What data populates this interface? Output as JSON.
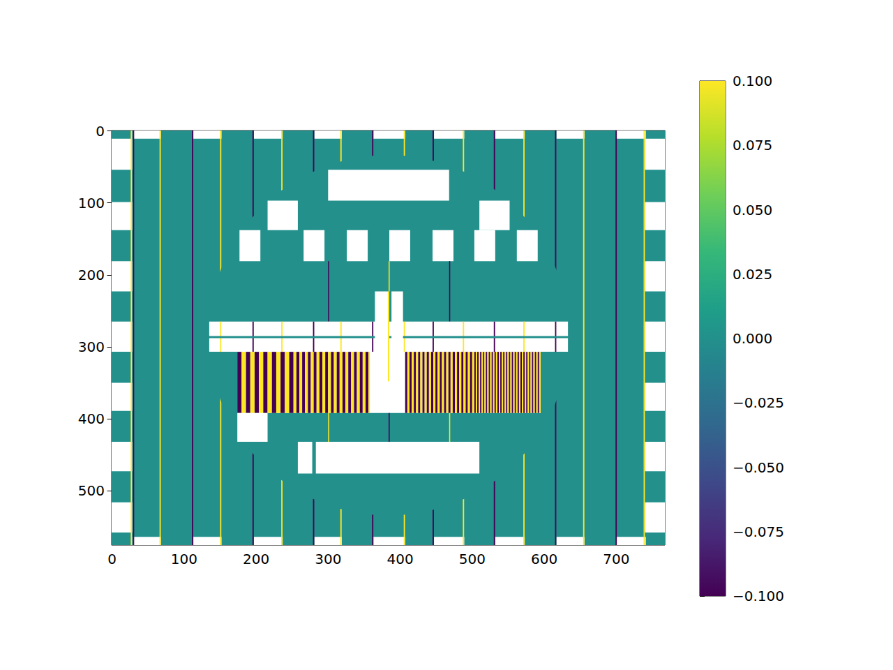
{
  "chart_data": {
    "type": "heatmap",
    "xlim": [
      -0.5,
      767.5
    ],
    "xticks": [
      0,
      100,
      200,
      300,
      400,
      500,
      600,
      700
    ],
    "ylim": [
      575.5,
      -0.5
    ],
    "yticks": [
      0,
      100,
      200,
      300,
      400,
      500
    ],
    "colorbar": {
      "range": [
        -0.1,
        0.1
      ],
      "ticks": [
        {
          "value": -0.1,
          "label": "−0.100"
        },
        {
          "value": -0.075,
          "label": "−0.075"
        },
        {
          "value": -0.05,
          "label": "−0.050"
        },
        {
          "value": -0.025,
          "label": "−0.025"
        },
        {
          "value": 0,
          "label": "0.000"
        },
        {
          "value": 0.025,
          "label": "0.025"
        },
        {
          "value": 0.05,
          "label": "0.050"
        },
        {
          "value": 0.075,
          "label": "0.075"
        },
        {
          "value": 0.1,
          "label": "0.100"
        }
      ]
    },
    "cells": [
      [
        -0.5,
        767.5,
        -0.5,
        575.5,
        0
      ],
      [
        -0.5,
        28,
        11,
        54,
        null
      ],
      [
        -0.5,
        28,
        99,
        138,
        null
      ],
      [
        -0.5,
        28,
        181,
        223,
        null
      ],
      [
        -0.5,
        28,
        265,
        307,
        null
      ],
      [
        -0.5,
        28,
        350,
        389,
        null
      ],
      [
        -0.5,
        28,
        432,
        473,
        null
      ],
      [
        -0.5,
        28,
        516,
        558,
        null
      ],
      [
        740,
        767.5,
        11,
        54,
        null
      ],
      [
        740,
        767.5,
        99,
        138,
        null
      ],
      [
        740,
        767.5,
        181,
        223,
        null
      ],
      [
        740,
        767.5,
        265,
        307,
        null
      ],
      [
        740,
        767.5,
        350,
        389,
        null
      ],
      [
        740,
        767.5,
        432,
        473,
        null
      ],
      [
        740,
        767.5,
        516,
        558,
        null
      ],
      [
        29,
        68,
        -0.5,
        11,
        null
      ],
      [
        113,
        152,
        -0.5,
        11,
        null
      ],
      [
        197,
        237,
        -0.5,
        11,
        null
      ],
      [
        281,
        319,
        -0.5,
        11,
        null
      ],
      [
        363,
        407,
        -0.5,
        11,
        null
      ],
      [
        447,
        489,
        -0.5,
        11,
        null
      ],
      [
        532,
        573,
        -0.5,
        11,
        null
      ],
      [
        617,
        656,
        -0.5,
        11,
        null
      ],
      [
        700,
        741,
        -0.5,
        11,
        null
      ],
      [
        29,
        68,
        564,
        575.5,
        null
      ],
      [
        113,
        152,
        564,
        575.5,
        null
      ],
      [
        197,
        237,
        564,
        575.5,
        null
      ],
      [
        281,
        319,
        564,
        575.5,
        null
      ],
      [
        363,
        407,
        564,
        575.5,
        null
      ],
      [
        447,
        489,
        564,
        575.5,
        null
      ],
      [
        532,
        573,
        564,
        575.5,
        null
      ],
      [
        617,
        656,
        564,
        575.5,
        null
      ],
      [
        700,
        741,
        564,
        575.5,
        null
      ],
      [
        26,
        27.8,
        -0.5,
        575.5,
        0.1
      ],
      [
        66,
        67.8,
        -0.5,
        575.5,
        0.1
      ],
      [
        150,
        151.8,
        -0.5,
        575.5,
        0.1
      ],
      [
        235,
        236.8,
        -0.5,
        575.5,
        0.1
      ],
      [
        317,
        318.8,
        -0.5,
        575.5,
        0.1
      ],
      [
        405,
        406.8,
        -0.5,
        575.5,
        0.1
      ],
      [
        487,
        488.8,
        -0.5,
        575.5,
        0.1
      ],
      [
        571,
        572.8,
        -0.5,
        575.5,
        0.1
      ],
      [
        654,
        655.8,
        -0.5,
        575.5,
        0.1
      ],
      [
        738,
        739.8,
        -0.5,
        575.5,
        0.1
      ],
      [
        29,
        30.8,
        -0.5,
        575.5,
        -0.1
      ],
      [
        111,
        112.8,
        -0.5,
        575.5,
        -0.1
      ],
      [
        195,
        196.8,
        -0.5,
        575.5,
        -0.1
      ],
      [
        279,
        280.8,
        -0.5,
        575.5,
        -0.1
      ],
      [
        361,
        362.8,
        -0.5,
        575.5,
        -0.1
      ],
      [
        445,
        446.8,
        -0.5,
        575.5,
        -0.1
      ],
      [
        530,
        531.8,
        -0.5,
        575.5,
        -0.1
      ],
      [
        615,
        616.8,
        -0.5,
        575.5,
        -0.1
      ],
      [
        699,
        700.8,
        -0.5,
        575.5,
        -0.1
      ]
    ],
    "disc": {
      "cx": 384,
      "cy": 284,
      "r": 250,
      "value": 0
    },
    "disc_cells": [
      [
        300,
        468,
        54,
        97,
        null
      ],
      [
        216,
        258,
        97,
        138,
        null
      ],
      [
        510,
        552,
        97,
        138,
        null
      ],
      [
        177,
        206,
        138,
        181,
        null
      ],
      [
        266,
        295,
        138,
        181,
        null
      ],
      [
        326,
        355,
        138,
        181,
        null
      ],
      [
        385,
        414,
        138,
        181,
        null
      ],
      [
        445,
        474,
        138,
        181,
        null
      ],
      [
        503,
        532,
        138,
        181,
        null
      ],
      [
        562,
        591,
        138,
        181,
        null
      ],
      [
        300,
        301.5,
        181,
        265,
        -0.1
      ],
      [
        468,
        469.5,
        181,
        265,
        -0.1
      ],
      [
        384,
        385.5,
        181,
        223,
        0.1
      ],
      [
        135,
        633,
        265,
        307,
        null
      ],
      [
        150,
        151.8,
        265,
        307,
        0.1
      ],
      [
        235,
        236.8,
        265,
        307,
        0.1
      ],
      [
        317,
        318.8,
        265,
        307,
        0.1
      ],
      [
        405,
        406.8,
        265,
        307,
        0.1
      ],
      [
        487,
        488.8,
        265,
        307,
        0.1
      ],
      [
        571,
        572.8,
        265,
        307,
        0.1
      ],
      [
        195,
        196.8,
        265,
        307,
        -0.1
      ],
      [
        279,
        280.8,
        265,
        307,
        -0.1
      ],
      [
        361,
        362.8,
        265,
        307,
        -0.1
      ],
      [
        445,
        446.8,
        265,
        307,
        -0.1
      ],
      [
        530,
        531.8,
        265,
        307,
        -0.1
      ],
      [
        615,
        616.8,
        265,
        307,
        -0.1
      ],
      [
        131,
        637,
        285,
        288,
        0
      ],
      [
        174,
        595,
        307,
        392,
        null
      ],
      [
        174,
        180,
        307,
        392,
        -0.1
      ],
      [
        180,
        186,
        307,
        392,
        0.1
      ],
      [
        186,
        192,
        307,
        392,
        -0.1
      ],
      [
        192,
        198,
        307,
        392,
        0.1
      ],
      [
        198,
        204,
        307,
        392,
        -0.1
      ],
      [
        204,
        210,
        307,
        392,
        0.1
      ],
      [
        210,
        216,
        307,
        392,
        -0.1
      ],
      [
        216,
        222,
        307,
        392,
        0.1
      ],
      [
        222,
        228,
        307,
        392,
        -0.1
      ],
      [
        228,
        234,
        307,
        392,
        0.1
      ],
      [
        234,
        240,
        307,
        392,
        -0.1
      ],
      [
        240,
        246,
        307,
        392,
        0.1
      ],
      [
        246,
        252,
        307,
        392,
        -0.1
      ],
      [
        252,
        256,
        307,
        392,
        0.1
      ],
      [
        256,
        260,
        307,
        392,
        -0.1
      ],
      [
        260,
        264,
        307,
        392,
        0.1
      ],
      [
        264,
        268,
        307,
        392,
        -0.1
      ],
      [
        268,
        272,
        307,
        392,
        0.1
      ],
      [
        272,
        276,
        307,
        392,
        -0.1
      ],
      [
        276,
        280,
        307,
        392,
        0.1
      ],
      [
        280,
        284,
        307,
        392,
        -0.1
      ],
      [
        284,
        288,
        307,
        392,
        0.1
      ],
      [
        288,
        292,
        307,
        392,
        -0.1
      ],
      [
        292,
        296,
        307,
        392,
        0.1
      ],
      [
        296,
        300,
        307,
        392,
        -0.1
      ],
      [
        300,
        304,
        307,
        392,
        0.1
      ],
      [
        304,
        308,
        307,
        392,
        -0.1
      ],
      [
        308,
        312,
        307,
        392,
        0.1
      ],
      [
        312,
        316,
        307,
        392,
        -0.1
      ],
      [
        316,
        320,
        307,
        392,
        0.1
      ],
      [
        320,
        324,
        307,
        392,
        -0.1
      ],
      [
        324,
        328,
        307,
        392,
        0.1
      ],
      [
        328,
        332,
        307,
        392,
        -0.1
      ],
      [
        332,
        336,
        307,
        392,
        0.1
      ],
      [
        336,
        340,
        307,
        392,
        -0.1
      ],
      [
        340,
        344,
        307,
        392,
        0.1
      ],
      [
        344,
        348,
        307,
        392,
        -0.1
      ],
      [
        348,
        352,
        307,
        392,
        0.1
      ],
      [
        352,
        356,
        307,
        392,
        -0.1
      ],
      [
        356,
        358,
        307,
        392,
        0.1
      ],
      [
        407,
        410,
        307,
        392,
        -0.1
      ],
      [
        410,
        413,
        307,
        392,
        0.1
      ],
      [
        413,
        416,
        307,
        392,
        -0.1
      ],
      [
        416,
        419,
        307,
        392,
        0.1
      ],
      [
        419,
        422,
        307,
        392,
        -0.1
      ],
      [
        422,
        425,
        307,
        392,
        0.1
      ],
      [
        425,
        428,
        307,
        392,
        -0.1
      ],
      [
        428,
        431,
        307,
        392,
        0.1
      ],
      [
        431,
        434,
        307,
        392,
        -0.1
      ],
      [
        434,
        437,
        307,
        392,
        0.1
      ],
      [
        437,
        440,
        307,
        392,
        -0.1
      ],
      [
        440,
        443,
        307,
        392,
        0.1
      ],
      [
        443,
        446,
        307,
        392,
        -0.1
      ],
      [
        446,
        449,
        307,
        392,
        0.1
      ],
      [
        449,
        452,
        307,
        392,
        -0.1
      ],
      [
        452,
        455,
        307,
        392,
        0.1
      ],
      [
        455,
        458,
        307,
        392,
        -0.1
      ],
      [
        458,
        461,
        307,
        392,
        0.1
      ],
      [
        461,
        464,
        307,
        392,
        -0.1
      ],
      [
        464,
        467,
        307,
        392,
        0.1
      ],
      [
        467,
        470,
        307,
        392,
        -0.1
      ],
      [
        470,
        473,
        307,
        392,
        0.1
      ],
      [
        473,
        476,
        307,
        392,
        -0.1
      ],
      [
        476,
        479,
        307,
        392,
        0.1
      ],
      [
        479,
        482,
        307,
        392,
        -0.1
      ],
      [
        482,
        485,
        307,
        392,
        0.1
      ],
      [
        485,
        488,
        307,
        392,
        -0.1
      ],
      [
        488,
        491,
        307,
        392,
        0.1
      ],
      [
        491,
        494,
        307,
        392,
        -0.1
      ],
      [
        494,
        497,
        307,
        392,
        0.1
      ],
      [
        497,
        500,
        307,
        392,
        -0.1
      ],
      [
        500,
        503,
        307,
        392,
        0.1
      ],
      [
        503,
        505,
        307,
        392,
        -0.1
      ],
      [
        505,
        507,
        307,
        392,
        0.1
      ],
      [
        507,
        509,
        307,
        392,
        -0.1
      ],
      [
        509,
        511,
        307,
        392,
        0.1
      ],
      [
        511,
        513,
        307,
        392,
        -0.1
      ],
      [
        513,
        515,
        307,
        392,
        0.1
      ],
      [
        515,
        517,
        307,
        392,
        -0.1
      ],
      [
        517,
        519,
        307,
        392,
        0.1
      ],
      [
        519,
        521,
        307,
        392,
        -0.1
      ],
      [
        521,
        523,
        307,
        392,
        0.1
      ],
      [
        523,
        525,
        307,
        392,
        -0.1
      ],
      [
        525,
        527,
        307,
        392,
        0.1
      ],
      [
        527,
        529,
        307,
        392,
        -0.1
      ],
      [
        529,
        531,
        307,
        392,
        0.1
      ],
      [
        531,
        533,
        307,
        392,
        -0.1
      ],
      [
        533,
        535,
        307,
        392,
        0.1
      ],
      [
        535,
        537,
        307,
        392,
        -0.1
      ],
      [
        537,
        539,
        307,
        392,
        0.1
      ],
      [
        539,
        541,
        307,
        392,
        -0.1
      ],
      [
        541,
        543,
        307,
        392,
        0.1
      ],
      [
        543,
        545,
        307,
        392,
        -0.1
      ],
      [
        545,
        547,
        307,
        392,
        0.1
      ],
      [
        547,
        549,
        307,
        392,
        -0.1
      ],
      [
        549,
        551,
        307,
        392,
        0.1
      ],
      [
        551,
        553,
        307,
        392,
        -0.1
      ],
      [
        553,
        555,
        307,
        392,
        0.1
      ],
      [
        555,
        557,
        307,
        392,
        -0.1
      ],
      [
        557,
        559,
        307,
        392,
        0.1
      ],
      [
        559,
        561,
        307,
        392,
        -0.1
      ],
      [
        561,
        563,
        307,
        392,
        0.1
      ],
      [
        563,
        565,
        307,
        392,
        -0.1
      ],
      [
        565,
        567,
        307,
        392,
        0.1
      ],
      [
        567,
        569,
        307,
        392,
        -0.1
      ],
      [
        569,
        571,
        307,
        392,
        0.1
      ],
      [
        571,
        573,
        307,
        392,
        -0.1
      ],
      [
        573,
        575,
        307,
        392,
        0.1
      ],
      [
        575,
        577,
        307,
        392,
        -0.1
      ],
      [
        577,
        579,
        307,
        392,
        0.1
      ],
      [
        579,
        581,
        307,
        392,
        -0.1
      ],
      [
        581,
        583,
        307,
        392,
        0.1
      ],
      [
        583,
        585,
        307,
        392,
        -0.1
      ],
      [
        585,
        587,
        307,
        392,
        0.1
      ],
      [
        587,
        589,
        307,
        392,
        -0.1
      ],
      [
        589,
        591,
        307,
        392,
        0.1
      ],
      [
        591,
        593,
        307,
        392,
        -0.1
      ],
      [
        593,
        595,
        307,
        392,
        0.1
      ],
      [
        365,
        383,
        223,
        348,
        null
      ],
      [
        383,
        385,
        223,
        348,
        0.1
      ],
      [
        388,
        404,
        223,
        348,
        null
      ],
      [
        174,
        216,
        392,
        432,
        null
      ],
      [
        300,
        301.5,
        392,
        432,
        0.1
      ],
      [
        468,
        469.5,
        392,
        432,
        0.1
      ],
      [
        384,
        385.5,
        392,
        432,
        -0.1
      ],
      [
        258,
        278,
        432,
        476,
        null
      ],
      [
        283,
        510,
        432,
        476,
        null
      ]
    ]
  }
}
